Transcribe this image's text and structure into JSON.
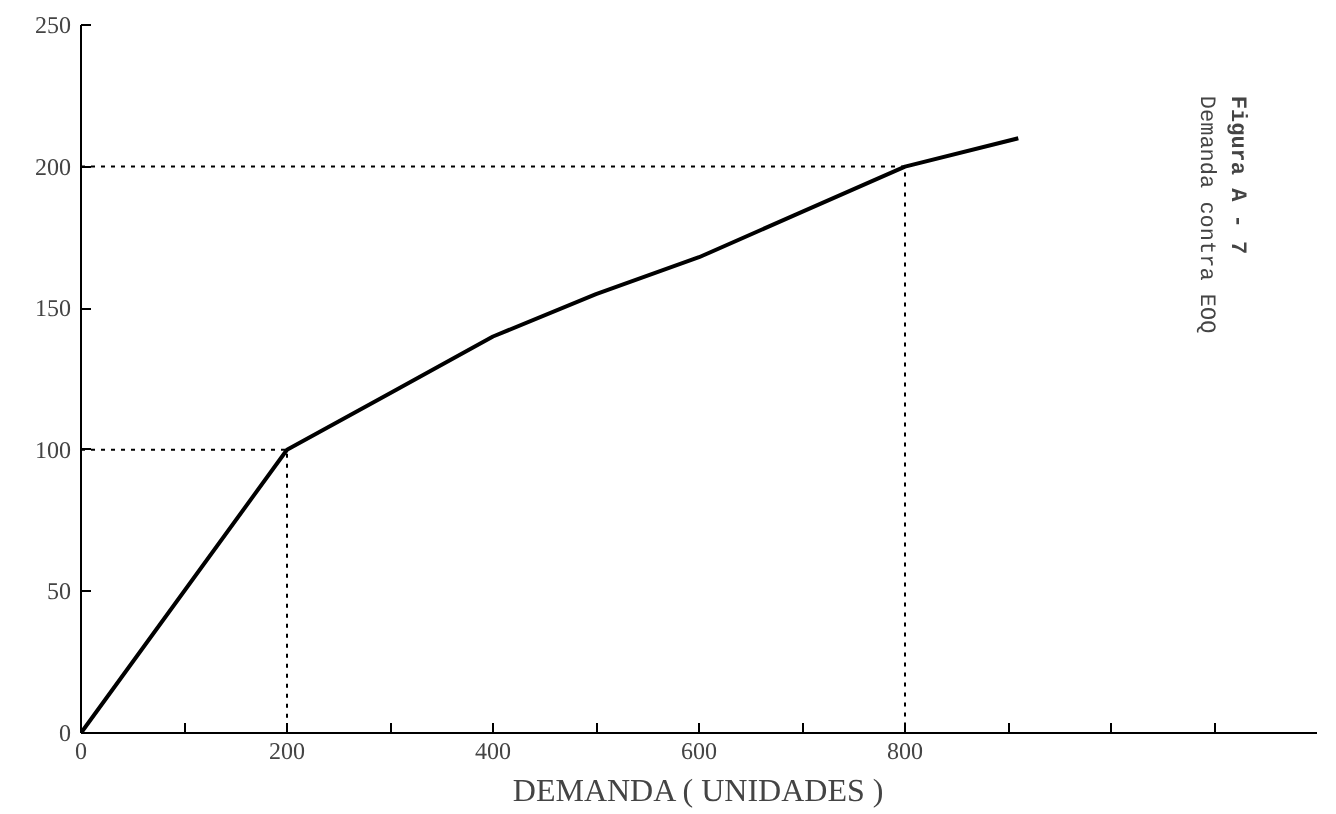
{
  "chart_data": {
    "type": "line",
    "xlabel": "DEMANDA ( UNIDADES )",
    "annotations": [
      "Figura A - 7",
      "Demanda contra EOQ"
    ],
    "xlim": [
      0,
      1200
    ],
    "ylim": [
      0,
      250
    ],
    "xticks": [
      0,
      {
        "value": 100,
        "label": null
      },
      200,
      {
        "value": 300,
        "label": null
      },
      400,
      {
        "value": 500,
        "label": null
      },
      600,
      {
        "value": 700,
        "label": null
      },
      800,
      {
        "value": 900,
        "label": null
      },
      {
        "value": 1000,
        "label": null
      },
      {
        "value": 1100,
        "label": null
      }
    ],
    "yticks": [
      0,
      50,
      100,
      150,
      200,
      250
    ],
    "grid": false,
    "marker": "none",
    "series": [
      {
        "color": "#000000",
        "line_style": "solid",
        "x": [
          0,
          200,
          300,
          400,
          500,
          600,
          700,
          800,
          910
        ],
        "values": [
          0,
          100,
          120,
          140,
          155,
          168,
          184,
          200,
          210
        ]
      },
      {
        "color": "#000000",
        "line_style": "dotted",
        "x": [
          0,
          200,
          200
        ],
        "values": [
          100,
          100,
          0
        ]
      },
      {
        "color": "#000000",
        "line_style": "dotted",
        "x": [
          0,
          800,
          800
        ],
        "values": [
          200,
          200,
          0
        ]
      }
    ]
  }
}
